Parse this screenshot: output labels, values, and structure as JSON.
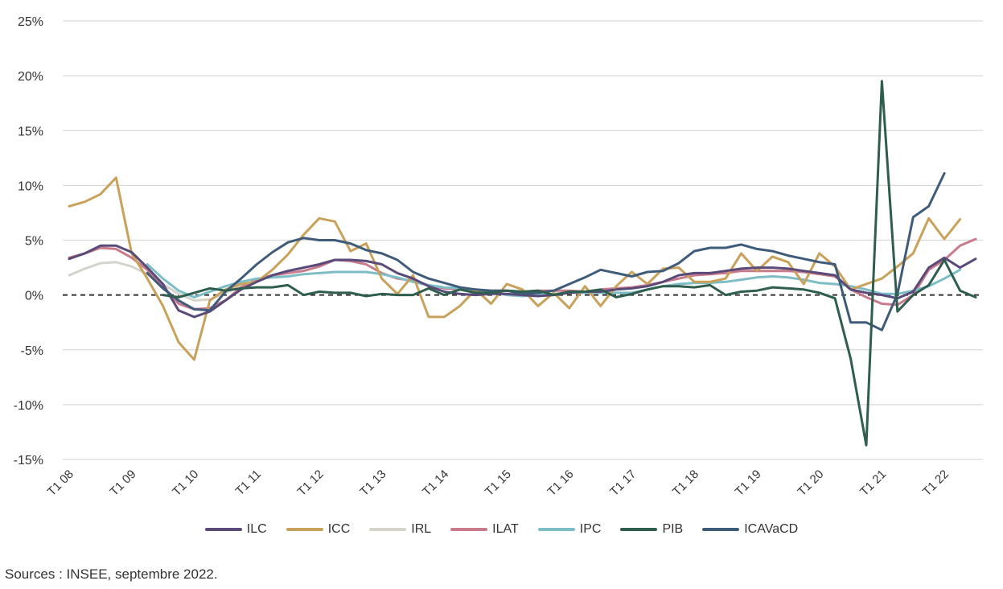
{
  "chart_data": {
    "type": "line",
    "y_ticks": [
      "25%",
      "20%",
      "15%",
      "10%",
      "5%",
      "0%",
      "-5%",
      "-10%",
      "-15%"
    ],
    "ylim": [
      -15,
      25
    ],
    "x_ticks": [
      "T1 08",
      "T1 09",
      "T1 10",
      "T1 11",
      "T1 12",
      "T1 13",
      "T1 14",
      "T1 15",
      "T1 16",
      "T1 17",
      "T1 18",
      "T1 19",
      "T1 20",
      "T1 21",
      "T1 22"
    ],
    "zero_line": "dashed",
    "grid": "horizontal",
    "series": [
      {
        "name": "ILC",
        "color": "#5a4a7a",
        "values": [
          3.3,
          3.8,
          4.5,
          4.5,
          3.9,
          2.5,
          1.0,
          -1.4,
          -2.0,
          -1.5,
          -0.5,
          0.5,
          1.2,
          1.8,
          2.2,
          2.5,
          2.8,
          3.2,
          3.2,
          3.1,
          2.8,
          2.0,
          1.5,
          0.8,
          0.3,
          0.1,
          0.0,
          0.1,
          0.1,
          0.0,
          -0.1,
          0.0,
          0.2,
          0.3,
          0.3,
          0.5,
          0.6,
          0.8,
          1.2,
          1.8,
          2.0,
          2.0,
          2.2,
          2.4,
          2.5,
          2.5,
          2.4,
          2.2,
          2.0,
          1.8,
          0.5,
          0.2,
          0.0,
          -0.3,
          0.3,
          2.5,
          3.4,
          2.5,
          3.3
        ]
      },
      {
        "name": "ICC",
        "color": "#c9a15a",
        "values": [
          8.1,
          8.5,
          9.2,
          10.7,
          3.8,
          1.5,
          -1.0,
          -4.3,
          -5.9,
          -0.5,
          0.5,
          1.0,
          1.2,
          2.3,
          3.7,
          5.5,
          7.0,
          6.7,
          4.0,
          4.7,
          1.5,
          0.1,
          1.8,
          -2.0,
          -2.0,
          -1.0,
          0.5,
          -0.8,
          1.0,
          0.5,
          -1.0,
          0.2,
          -1.2,
          0.8,
          -1.0,
          0.8,
          2.1,
          1.0,
          2.4,
          2.5,
          1.2,
          1.2,
          1.5,
          3.8,
          2.2,
          3.5,
          3.0,
          1.0,
          3.8,
          2.6,
          0.5,
          1.0,
          1.5,
          2.6,
          3.8,
          7.0,
          5.1,
          6.9,
          null
        ]
      },
      {
        "name": "IRL",
        "color": "#d4d3cc",
        "values": [
          1.8,
          2.4,
          2.9,
          3.0,
          2.6,
          1.9,
          1.0,
          0.1,
          -0.5,
          -0.4,
          0.2,
          0.8,
          null,
          null,
          null,
          null,
          null,
          null,
          null,
          null,
          null,
          null,
          null,
          null,
          null,
          null,
          null,
          null,
          null,
          null,
          null,
          null,
          null,
          null,
          null,
          null,
          null,
          null,
          null,
          null,
          null,
          null,
          null,
          null,
          null,
          null,
          null,
          null,
          null,
          null,
          null,
          null,
          null,
          null,
          null,
          null,
          null,
          null,
          null
        ]
      },
      {
        "name": "ILAT",
        "color": "#c97b8c",
        "values": [
          3.4,
          3.8,
          4.3,
          4.2,
          3.4,
          2.3,
          0.8,
          -0.8,
          -1.3,
          -1.2,
          -0.5,
          0.7,
          1.4,
          1.8,
          2.0,
          2.2,
          2.6,
          3.2,
          3.1,
          2.8,
          2.0,
          1.5,
          1.3,
          0.9,
          0.6,
          0.5,
          0.3,
          0.4,
          0.4,
          0.3,
          0.4,
          0.4,
          0.4,
          0.3,
          0.5,
          0.6,
          0.7,
          0.9,
          1.2,
          1.5,
          1.8,
          1.9,
          2.0,
          2.2,
          2.2,
          2.2,
          2.2,
          2.1,
          1.9,
          1.7,
          0.5,
          -0.2,
          -0.8,
          -0.9,
          0.0,
          2.3,
          3.2,
          4.5,
          5.1
        ]
      },
      {
        "name": "IPC",
        "color": "#7dbdc6",
        "values": [
          null,
          null,
          null,
          null,
          null,
          2.8,
          1.5,
          0.4,
          -0.2,
          0.3,
          0.8,
          1.2,
          1.5,
          1.6,
          1.7,
          1.9,
          2.0,
          2.1,
          2.1,
          2.1,
          1.9,
          1.6,
          1.2,
          0.9,
          0.7,
          0.6,
          0.5,
          0.3,
          0.0,
          -0.1,
          0.0,
          0.1,
          0.2,
          0.2,
          0.2,
          0.2,
          0.2,
          0.5,
          0.8,
          1.0,
          1.1,
          1.1,
          1.2,
          1.4,
          1.6,
          1.7,
          1.6,
          1.4,
          1.1,
          1.0,
          0.8,
          0.5,
          0.1,
          0.1,
          0.4,
          0.8,
          1.5,
          2.3,
          null
        ]
      },
      {
        "name": "PIB",
        "color": "#2f5e4e",
        "values": [
          null,
          null,
          null,
          null,
          null,
          null,
          0.0,
          -0.2,
          0.2,
          0.6,
          0.4,
          0.6,
          0.7,
          0.7,
          0.9,
          0.0,
          0.3,
          0.2,
          0.2,
          -0.1,
          0.1,
          0.0,
          0.0,
          0.6,
          0.0,
          0.5,
          0.2,
          0.2,
          0.4,
          0.3,
          0.4,
          0.0,
          0.3,
          0.3,
          0.5,
          -0.2,
          0.1,
          0.5,
          0.8,
          0.8,
          0.7,
          0.9,
          0.0,
          0.3,
          0.4,
          0.7,
          0.6,
          0.5,
          0.2,
          -0.3,
          -5.8,
          -13.7,
          19.5,
          -1.5,
          0.0,
          0.9,
          3.2,
          0.4,
          -0.2
        ]
      },
      {
        "name": "ICAVaCD",
        "color": "#3e5c7a",
        "values": [
          null,
          null,
          null,
          null,
          null,
          2.0,
          0.6,
          -0.5,
          -1.3,
          -1.4,
          0.3,
          1.5,
          2.8,
          3.9,
          4.8,
          5.2,
          5.0,
          5.0,
          4.7,
          4.1,
          3.8,
          3.2,
          2.1,
          1.5,
          1.1,
          0.7,
          0.5,
          0.4,
          0.4,
          0.1,
          0.2,
          0.4,
          1.0,
          1.6,
          2.3,
          2.0,
          1.7,
          2.1,
          2.2,
          2.9,
          4.0,
          4.3,
          4.3,
          4.6,
          4.2,
          4.0,
          3.6,
          3.3,
          3.0,
          2.8,
          -2.5,
          -2.5,
          -3.2,
          0.1,
          7.1,
          8.1,
          11.1,
          null,
          null
        ]
      }
    ]
  },
  "legend": {
    "items": [
      {
        "name": "ILC",
        "color": "#5a4a7a"
      },
      {
        "name": "ICC",
        "color": "#c9a15a"
      },
      {
        "name": "IRL",
        "color": "#d4d3cc"
      },
      {
        "name": "ILAT",
        "color": "#c97b8c"
      },
      {
        "name": "IPC",
        "color": "#7dbdc6"
      },
      {
        "name": "PIB",
        "color": "#2f5e4e"
      },
      {
        "name": "ICAVaCD",
        "color": "#3e5c7a"
      }
    ]
  },
  "source": "Sources : INSEE, septembre 2022."
}
